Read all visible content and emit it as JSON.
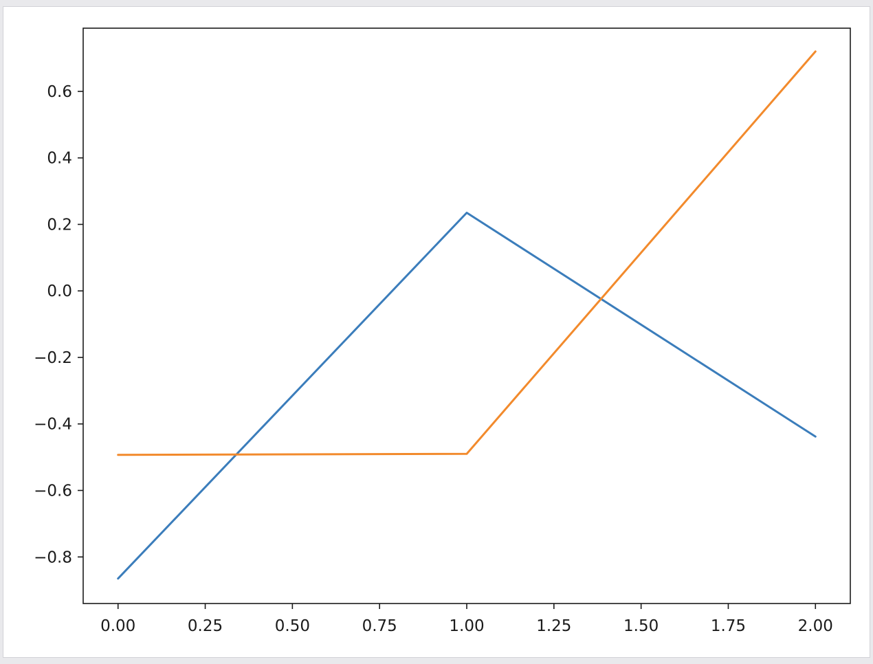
{
  "chart_data": {
    "type": "line",
    "title": "",
    "xlabel": "",
    "ylabel": "",
    "xlim": [
      -0.1,
      2.1
    ],
    "ylim": [
      -0.94,
      0.79
    ],
    "xticks": [
      0.0,
      0.25,
      0.5,
      0.75,
      1.0,
      1.25,
      1.5,
      1.75,
      2.0
    ],
    "xtick_labels": [
      "0.00",
      "0.25",
      "0.50",
      "0.75",
      "1.00",
      "1.25",
      "1.50",
      "1.75",
      "2.00"
    ],
    "yticks": [
      -0.8,
      -0.6,
      -0.4,
      -0.2,
      0.0,
      0.2,
      0.4,
      0.6
    ],
    "ytick_labels": [
      "−0.8",
      "−0.6",
      "−0.4",
      "−0.2",
      "0.0",
      "0.2",
      "0.4",
      "0.6"
    ],
    "grid": false,
    "legend": "none",
    "x": [
      0,
      1,
      2
    ],
    "series": [
      {
        "values": [
          -0.865,
          0.235,
          -0.438
        ],
        "color": "#3b7dbb"
      },
      {
        "values": [
          -0.493,
          -0.49,
          0.72
        ],
        "color": "#f28a2c"
      }
    ]
  }
}
